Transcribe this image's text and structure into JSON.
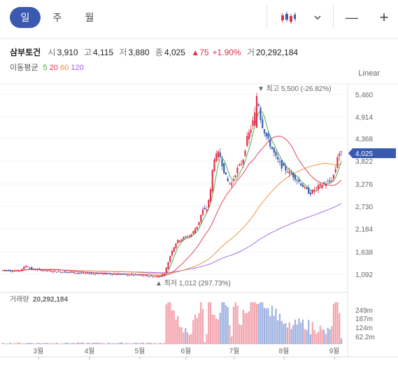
{
  "tabs": [
    {
      "label": "일",
      "active": true
    },
    {
      "label": "주",
      "active": false
    },
    {
      "label": "월",
      "active": false
    }
  ],
  "toolbar": {
    "chart_style_icon": "candlestick-icon",
    "dropdown_icon": "chevron-down-icon",
    "zoom_out": "—",
    "zoom_in": "+"
  },
  "summary": {
    "name": "삼부토건",
    "open_label": "시",
    "open": "3,910",
    "high_label": "고",
    "high": "4,115",
    "low_label": "저",
    "low": "3,880",
    "close_label": "종",
    "close": "4,025",
    "change": "▲75",
    "change_pct": "+1.90%",
    "volume_label": "거",
    "volume": "20,292,184"
  },
  "ma": {
    "label": "이동평균",
    "periods": [
      "5",
      "20",
      "60",
      "120"
    ],
    "colors": [
      "#3aaa35",
      "#e0314b",
      "#f08a2c",
      "#9b5de5"
    ]
  },
  "scale_label": "Linear",
  "colors": {
    "up": "#e0314b",
    "down": "#3a5ab0",
    "accent": "#3a5ab0"
  },
  "chart_data": {
    "type": "candlestick",
    "price_ticks": [
      "5,460",
      "4,914",
      "4,368",
      "3,822",
      "3,276",
      "2,730",
      "2,184",
      "1,638",
      "1,092"
    ],
    "price_range": [
      1092,
      5460
    ],
    "last_price": "4,025",
    "high_annotation": "▼ 최고 5,500 (-26.82%)",
    "low_annotation": "▲ 최저 1,012 (297.73%)",
    "month_labels": [
      "3월",
      "4월",
      "5월",
      "6월",
      "7월",
      "8월",
      "9월"
    ],
    "volume_label": "거래량",
    "volume_value": "20,292,184",
    "volume_ticks": [
      "249m",
      "187m",
      "124m",
      "62.2m"
    ],
    "series_names": [
      "5",
      "20",
      "60",
      "120"
    ]
  }
}
